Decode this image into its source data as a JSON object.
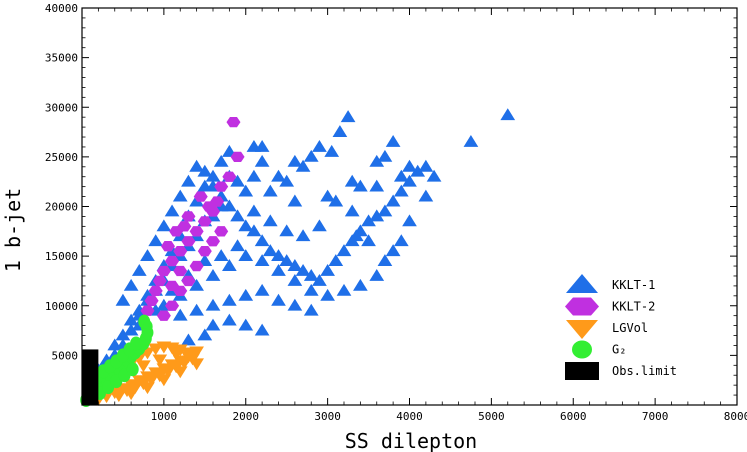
{
  "chart_data": {
    "type": "scatter",
    "title": "",
    "xlabel": "SS dilepton",
    "ylabel": "1 b-jet",
    "xlim": [
      0,
      8000
    ],
    "ylim": [
      0,
      40000
    ],
    "x_ticks": [
      1000,
      2000,
      3000,
      4000,
      5000,
      6000,
      7000,
      8000
    ],
    "y_ticks": [
      5000,
      10000,
      15000,
      20000,
      25000,
      30000,
      35000,
      40000
    ],
    "grid": false,
    "legend_position": "bottom-right",
    "series": [
      {
        "name": "KKLT-1",
        "marker": "triangle-up",
        "color": "#1f6fe8",
        "points": [
          [
            200,
            3500
          ],
          [
            300,
            4500
          ],
          [
            400,
            6000
          ],
          [
            500,
            7000
          ],
          [
            600,
            8500
          ],
          [
            700,
            9500
          ],
          [
            800,
            11000
          ],
          [
            900,
            12500
          ],
          [
            1000,
            14000
          ],
          [
            1100,
            15500
          ],
          [
            1200,
            17000
          ],
          [
            1300,
            19000
          ],
          [
            1400,
            20500
          ],
          [
            1500,
            22000
          ],
          [
            1600,
            23000
          ],
          [
            1700,
            24500
          ],
          [
            1800,
            25500
          ],
          [
            2100,
            26000
          ],
          [
            2200,
            26000
          ],
          [
            500,
            10500
          ],
          [
            600,
            12000
          ],
          [
            700,
            13500
          ],
          [
            800,
            15000
          ],
          [
            900,
            16500
          ],
          [
            1000,
            18000
          ],
          [
            1100,
            19500
          ],
          [
            1200,
            21000
          ],
          [
            1300,
            22500
          ],
          [
            1400,
            24000
          ],
          [
            1500,
            23500
          ],
          [
            1600,
            22000
          ],
          [
            1700,
            21000
          ],
          [
            1800,
            20000
          ],
          [
            1900,
            19000
          ],
          [
            2000,
            18000
          ],
          [
            2100,
            17500
          ],
          [
            2200,
            16500
          ],
          [
            2300,
            15500
          ],
          [
            2400,
            15000
          ],
          [
            2500,
            14500
          ],
          [
            2600,
            14000
          ],
          [
            2700,
            13500
          ],
          [
            2800,
            13000
          ],
          [
            2900,
            12500
          ],
          [
            3000,
            13500
          ],
          [
            3100,
            14500
          ],
          [
            3200,
            15500
          ],
          [
            3300,
            16500
          ],
          [
            3400,
            17500
          ],
          [
            3500,
            18500
          ],
          [
            3600,
            19000
          ],
          [
            3700,
            19500
          ],
          [
            3800,
            20500
          ],
          [
            3900,
            21500
          ],
          [
            4000,
            22500
          ],
          [
            4100,
            23500
          ],
          [
            4200,
            24000
          ],
          [
            4300,
            23000
          ],
          [
            3300,
            22500
          ],
          [
            3400,
            22000
          ],
          [
            3600,
            24500
          ],
          [
            3700,
            25000
          ],
          [
            3800,
            26500
          ],
          [
            3900,
            23000
          ],
          [
            4000,
            24000
          ],
          [
            3250,
            29000
          ],
          [
            3150,
            27500
          ],
          [
            3050,
            25500
          ],
          [
            2900,
            26000
          ],
          [
            2800,
            25000
          ],
          [
            2700,
            24000
          ],
          [
            2600,
            24500
          ],
          [
            2500,
            22500
          ],
          [
            2400,
            23000
          ],
          [
            2300,
            21500
          ],
          [
            2200,
            24500
          ],
          [
            2100,
            23000
          ],
          [
            2000,
            21500
          ],
          [
            1900,
            22500
          ],
          [
            1800,
            23000
          ],
          [
            1700,
            20000
          ],
          [
            1600,
            19000
          ],
          [
            1500,
            18500
          ],
          [
            1400,
            17000
          ],
          [
            1300,
            16000
          ],
          [
            1200,
            15000
          ],
          [
            1100,
            14000
          ],
          [
            1000,
            12500
          ],
          [
            900,
            11500
          ],
          [
            800,
            10500
          ],
          [
            700,
            9000
          ],
          [
            600,
            7500
          ],
          [
            500,
            6000
          ],
          [
            400,
            5000
          ],
          [
            1000,
            10000
          ],
          [
            1200,
            11000
          ],
          [
            1400,
            12000
          ],
          [
            1600,
            13000
          ],
          [
            1800,
            14000
          ],
          [
            2000,
            15000
          ],
          [
            2200,
            14500
          ],
          [
            2400,
            13500
          ],
          [
            2600,
            12500
          ],
          [
            2800,
            11500
          ],
          [
            3000,
            11000
          ],
          [
            3200,
            11500
          ],
          [
            3400,
            12000
          ],
          [
            3600,
            13000
          ],
          [
            3700,
            14500
          ],
          [
            3800,
            15500
          ],
          [
            3900,
            16500
          ],
          [
            4000,
            18500
          ],
          [
            4200,
            21000
          ],
          [
            3500,
            16500
          ],
          [
            3300,
            19500
          ],
          [
            3100,
            20500
          ],
          [
            2900,
            18000
          ],
          [
            2700,
            17000
          ],
          [
            2500,
            17500
          ],
          [
            2300,
            18500
          ],
          [
            2100,
            19500
          ],
          [
            1900,
            16000
          ],
          [
            1700,
            15000
          ],
          [
            1500,
            14500
          ],
          [
            1300,
            13000
          ],
          [
            1100,
            11500
          ],
          [
            900,
            9500
          ],
          [
            700,
            8000
          ],
          [
            1200,
            9000
          ],
          [
            1400,
            9500
          ],
          [
            1600,
            10000
          ],
          [
            1800,
            10500
          ],
          [
            2000,
            11000
          ],
          [
            2200,
            11500
          ],
          [
            2400,
            10500
          ],
          [
            2600,
            10000
          ],
          [
            2800,
            9500
          ],
          [
            1600,
            8000
          ],
          [
            1800,
            8500
          ],
          [
            2000,
            8000
          ],
          [
            2200,
            7500
          ],
          [
            1500,
            7000
          ],
          [
            1300,
            6500
          ],
          [
            4750,
            26500
          ],
          [
            5200,
            29200
          ],
          [
            3350,
            17000
          ],
          [
            3600,
            22000
          ],
          [
            3000,
            21000
          ],
          [
            2600,
            20500
          ]
        ]
      },
      {
        "name": "KKLT-2",
        "marker": "hexagon",
        "color": "#c030e0",
        "points": [
          [
            1850,
            28500
          ],
          [
            1900,
            25000
          ],
          [
            1800,
            23000
          ],
          [
            1700,
            22000
          ],
          [
            1650,
            20500
          ],
          [
            1600,
            19500
          ],
          [
            1500,
            18500
          ],
          [
            1400,
            17500
          ],
          [
            1300,
            16500
          ],
          [
            1200,
            15500
          ],
          [
            1100,
            14500
          ],
          [
            1000,
            13500
          ],
          [
            950,
            12500
          ],
          [
            900,
            11500
          ],
          [
            850,
            10500
          ],
          [
            800,
            9500
          ],
          [
            1000,
            9000
          ],
          [
            1100,
            10000
          ],
          [
            1200,
            11500
          ],
          [
            1300,
            12500
          ],
          [
            1400,
            14000
          ],
          [
            1500,
            15500
          ],
          [
            1600,
            16500
          ],
          [
            1700,
            17500
          ],
          [
            1200,
            13500
          ],
          [
            1100,
            12000
          ],
          [
            1050,
            16000
          ],
          [
            1150,
            17500
          ],
          [
            1300,
            19000
          ],
          [
            1450,
            21000
          ],
          [
            1550,
            20000
          ],
          [
            1250,
            18000
          ]
        ]
      },
      {
        "name": "LGVol",
        "marker": "triangle-down",
        "color": "#ff9a1a",
        "points": [
          [
            200,
            600
          ],
          [
            300,
            900
          ],
          [
            400,
            1300
          ],
          [
            500,
            1700
          ],
          [
            600,
            2100
          ],
          [
            700,
            2500
          ],
          [
            800,
            2900
          ],
          [
            900,
            3300
          ],
          [
            1000,
            3700
          ],
          [
            1100,
            4100
          ],
          [
            1200,
            4500
          ],
          [
            1300,
            4900
          ],
          [
            1400,
            5400
          ],
          [
            300,
            2000
          ],
          [
            400,
            2800
          ],
          [
            500,
            3500
          ],
          [
            600,
            4200
          ],
          [
            700,
            4800
          ],
          [
            800,
            5300
          ],
          [
            900,
            5700
          ],
          [
            1000,
            5900
          ],
          [
            1100,
            5800
          ],
          [
            1200,
            5600
          ],
          [
            1300,
            5300
          ],
          [
            450,
            1000
          ],
          [
            550,
            1500
          ],
          [
            650,
            1800
          ],
          [
            750,
            2200
          ],
          [
            850,
            2600
          ],
          [
            950,
            3000
          ],
          [
            1050,
            3400
          ],
          [
            1150,
            3900
          ],
          [
            1250,
            4300
          ],
          [
            1350,
            4700
          ],
          [
            250,
            1400
          ],
          [
            350,
            1800
          ],
          [
            750,
            4000
          ],
          [
            950,
            4600
          ],
          [
            1150,
            5200
          ],
          [
            600,
            1200
          ],
          [
            800,
            1800
          ],
          [
            1000,
            2600
          ],
          [
            1200,
            3400
          ],
          [
            1400,
            4200
          ]
        ]
      },
      {
        "name": "G₂",
        "marker": "circle",
        "color": "#33ee33",
        "points": [
          [
            50,
            500
          ],
          [
            100,
            900
          ],
          [
            150,
            1300
          ],
          [
            200,
            1700
          ],
          [
            250,
            2100
          ],
          [
            300,
            2500
          ],
          [
            350,
            2900
          ],
          [
            400,
            3300
          ],
          [
            450,
            3700
          ],
          [
            500,
            4100
          ],
          [
            550,
            4500
          ],
          [
            600,
            4900
          ],
          [
            650,
            5300
          ],
          [
            700,
            5700
          ],
          [
            750,
            6200
          ],
          [
            780,
            6700
          ],
          [
            800,
            7300
          ],
          [
            790,
            7900
          ],
          [
            760,
            8400
          ],
          [
            180,
            2800
          ],
          [
            260,
            3400
          ],
          [
            340,
            3900
          ],
          [
            420,
            4400
          ],
          [
            500,
            5000
          ],
          [
            580,
            5600
          ],
          [
            660,
            6200
          ],
          [
            120,
            1800
          ],
          [
            220,
            1200
          ],
          [
            320,
            1800
          ],
          [
            420,
            2400
          ],
          [
            520,
            3000
          ],
          [
            620,
            3600
          ]
        ]
      },
      {
        "name": "Obs.limit",
        "marker": "rect",
        "color": "#000000",
        "points": [],
        "rect": {
          "x0": 0,
          "x1": 200,
          "y0": 0,
          "y1": 5600
        }
      }
    ]
  }
}
